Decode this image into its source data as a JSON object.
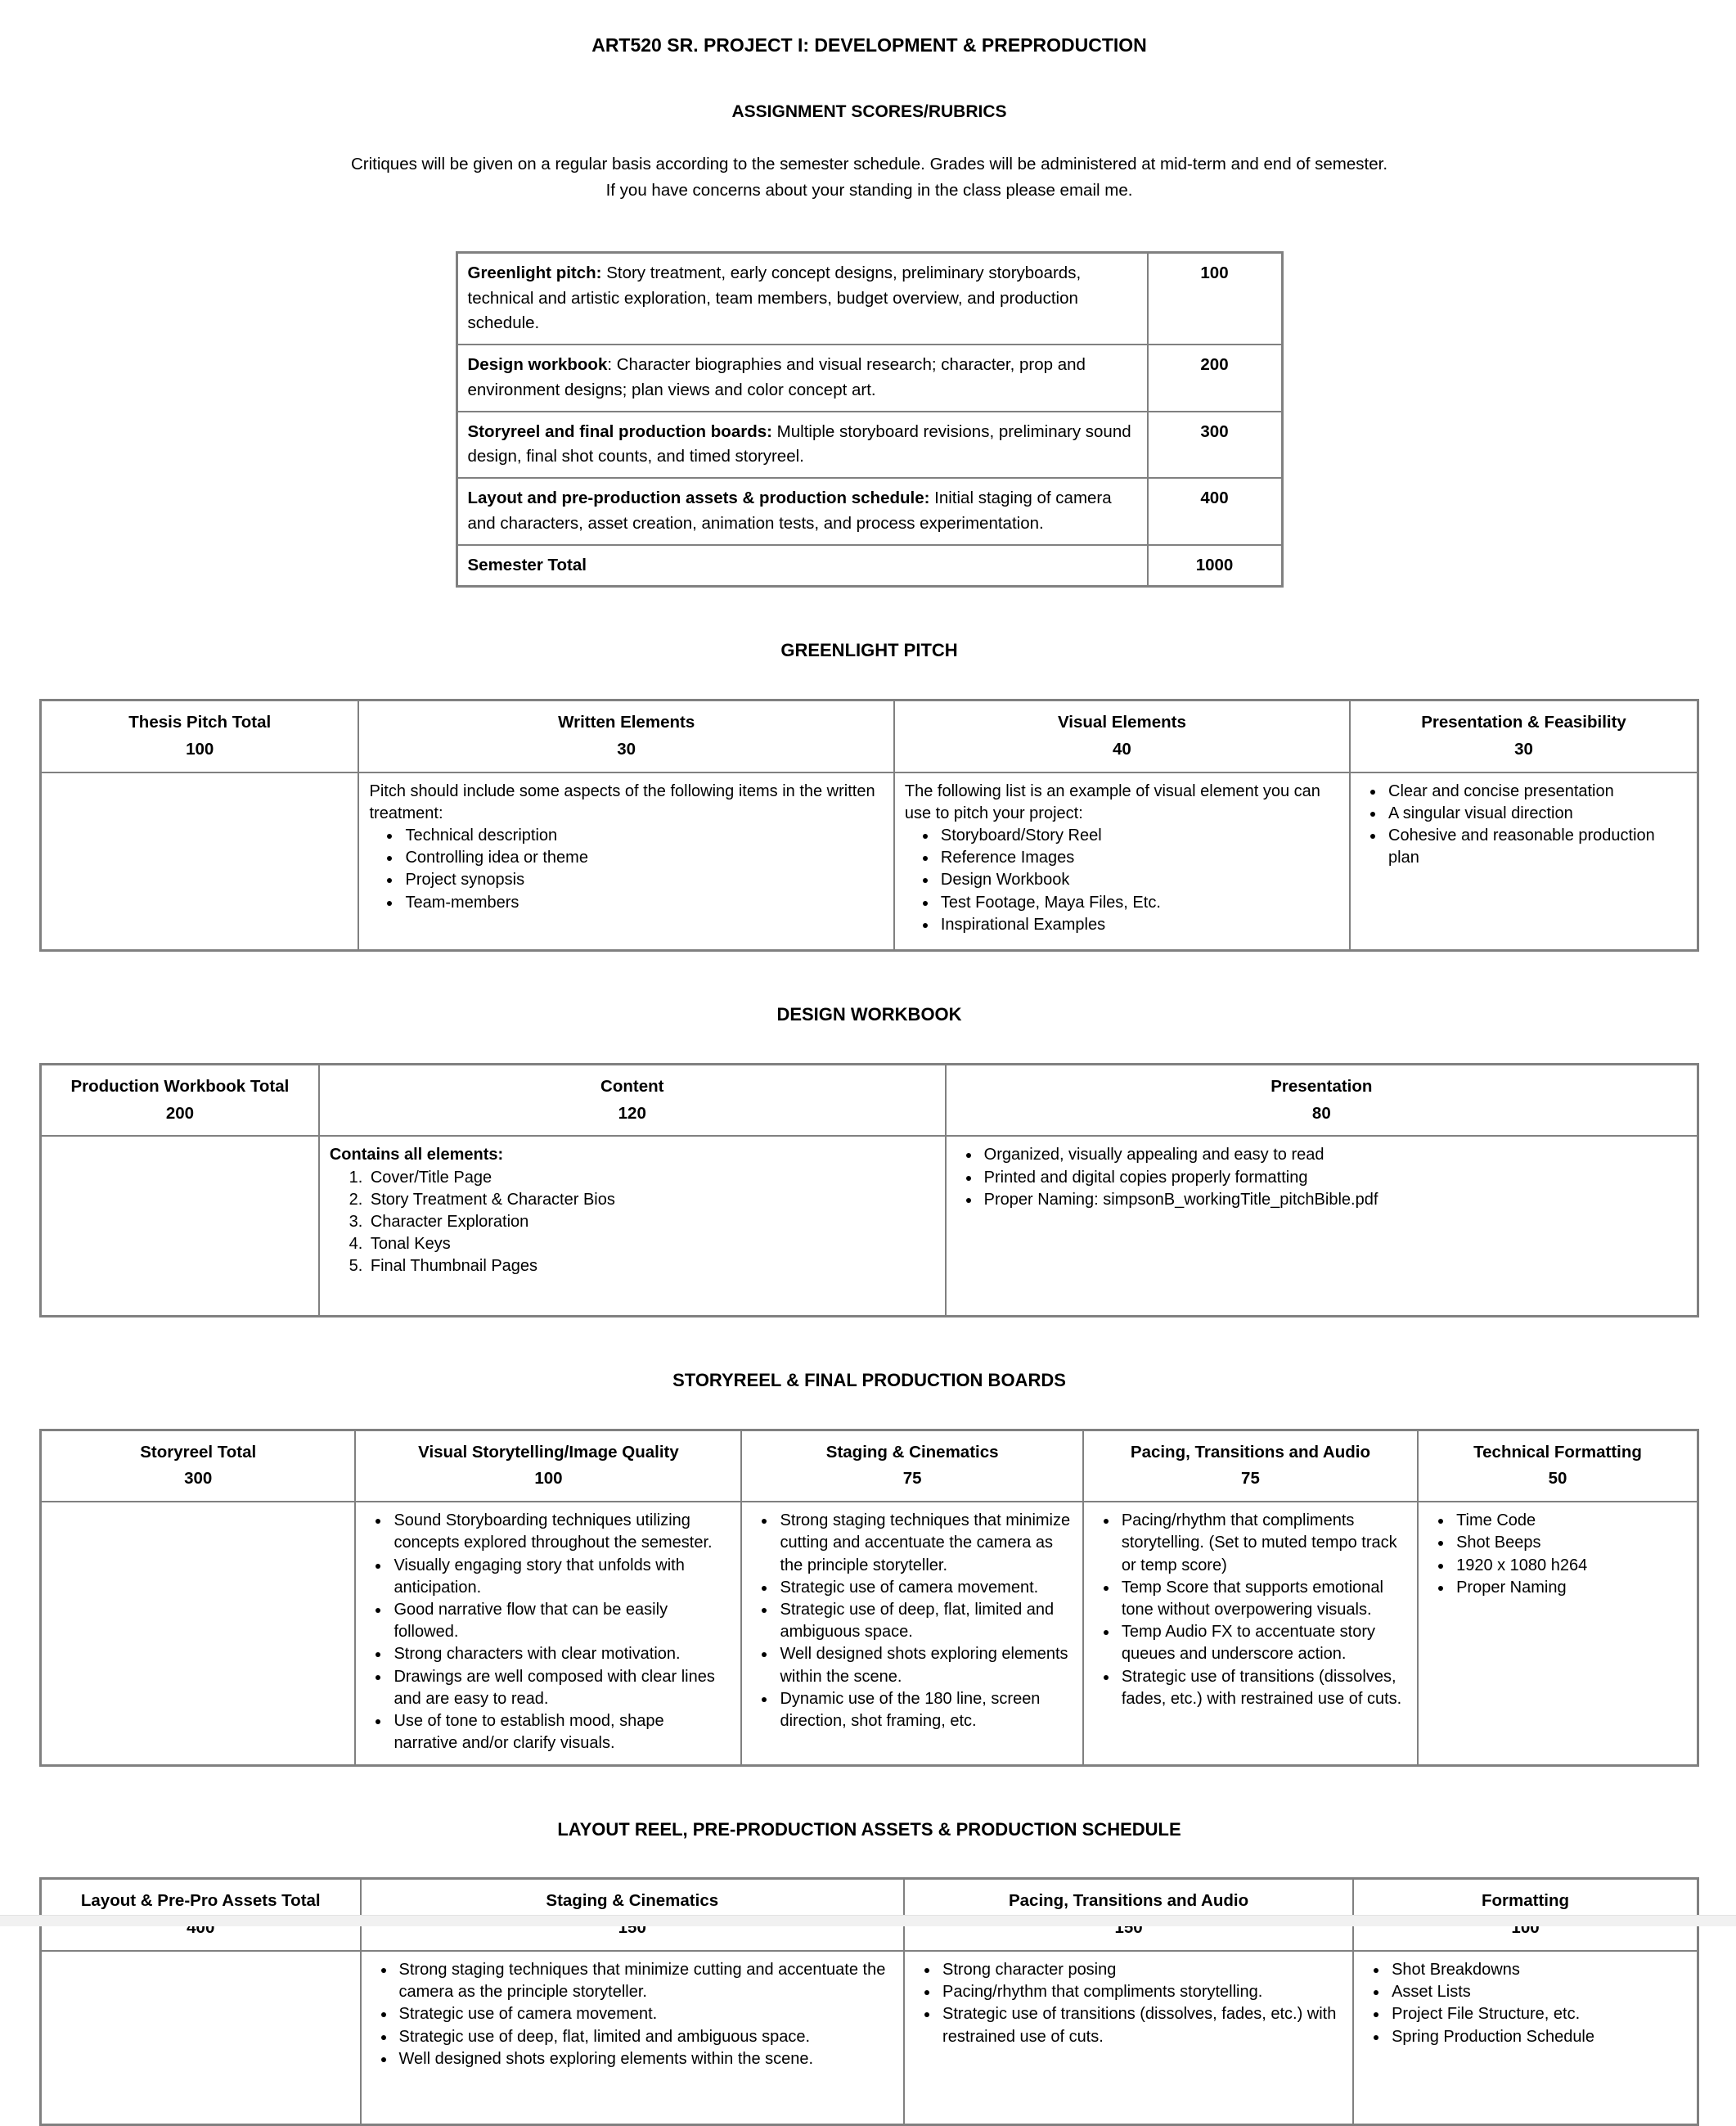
{
  "page": {
    "title": "ART520 SR. PROJECT I: DEVELOPMENT & PREPRODUCTION",
    "subtitle": "ASSIGNMENT SCORES/RUBRICS",
    "intro_line1": "Critiques will be given on a regular basis according to the semester schedule. Grades will be administered at mid-term and end of semester.",
    "intro_line2": "If you have concerns about your standing in the class please email me."
  },
  "overview_table": {
    "rows": [
      {
        "bold": "Greenlight pitch:",
        "rest": " Story treatment, early concept designs, preliminary storyboards, technical and artistic exploration, team members, budget overview, and production schedule.",
        "score": "100"
      },
      {
        "bold": "Design workbook",
        "rest": ": Character biographies and visual research; character, prop and environment designs; plan views and color concept art.",
        "score": "200"
      },
      {
        "bold": "Storyreel and final production boards:",
        "rest": " Multiple storyboard revisions, preliminary sound design, final shot counts, and timed storyreel.",
        "score": "300"
      },
      {
        "bold": "Layout and pre-production assets & production schedule:",
        "rest": " Initial staging of camera and characters, asset creation, animation tests, and process experimentation.",
        "score": "400"
      },
      {
        "bold": "Semester Total",
        "rest": "",
        "score": "1000"
      }
    ]
  },
  "greenlight": {
    "heading": "GREENLIGHT PITCH",
    "columns": [
      {
        "title": "Thesis Pitch Total",
        "points": "100"
      },
      {
        "title": "Written Elements",
        "points": "30",
        "lead": "Pitch should include some aspects of the following items in the written treatment:",
        "bullets": [
          "Technical description",
          "Controlling idea or theme",
          "Project synopsis",
          "Team-members"
        ]
      },
      {
        "title": "Visual Elements",
        "points": "40",
        "lead": "The following list is an example of visual element you can use to pitch your project:",
        "bullets": [
          "Storyboard/Story Reel",
          "Reference Images",
          "Design Workbook",
          "Test Footage, Maya Files, Etc.",
          "Inspirational Examples"
        ]
      },
      {
        "title": "Presentation & Feasibility",
        "points": "30",
        "bullets": [
          "Clear and concise presentation",
          "A singular visual direction",
          "Cohesive and reasonable production plan"
        ]
      }
    ]
  },
  "workbook": {
    "heading": "DESIGN WORKBOOK",
    "columns": [
      {
        "title": "Production Workbook Total",
        "points": "200"
      },
      {
        "title": "Content",
        "points": "120",
        "lead_bold": "Contains all elements:",
        "numbered": [
          "Cover/Title Page",
          "Story Treatment & Character Bios",
          "Character Exploration",
          "Tonal Keys",
          "Final Thumbnail Pages"
        ]
      },
      {
        "title": "Presentation",
        "points": "80",
        "bullets": [
          "Organized, visually appealing and easy to read",
          "Printed and digital copies properly formatting",
          "Proper Naming: simpsonB_workingTitle_pitchBible.pdf"
        ]
      }
    ]
  },
  "storyreel": {
    "heading": "STORYREEL & FINAL PRODUCTION BOARDS",
    "columns": [
      {
        "title": "Storyreel Total",
        "points": "300"
      },
      {
        "title": "Visual Storytelling/Image Quality",
        "points": "100",
        "bullets": [
          "Sound Storyboarding techniques utilizing concepts explored throughout the semester.",
          "Visually engaging story that unfolds with anticipation.",
          "Good narrative flow that can be easily followed.",
          "Strong characters with clear motivation.",
          "Drawings are well composed with clear lines and are easy to read.",
          "Use of tone to establish mood, shape narrative and/or clarify visuals."
        ]
      },
      {
        "title": "Staging & Cinematics",
        "points": "75",
        "bullets": [
          "Strong staging techniques that minimize cutting and accentuate the camera as the principle storyteller.",
          "Strategic use of camera movement.",
          "Strategic use of deep, flat, limited and ambiguous space.",
          "Well designed shots exploring elements within the scene.",
          "Dynamic use of the 180 line, screen direction, shot framing, etc."
        ]
      },
      {
        "title": "Pacing, Transitions and Audio",
        "points": "75",
        "bullets": [
          "Pacing/rhythm that compliments storytelling.  (Set to muted tempo track or temp score)",
          "Temp Score that supports emotional tone without overpowering  visuals.",
          "Temp Audio FX to accentuate story queues and underscore action.",
          "Strategic use of transitions (dissolves, fades, etc.) with restrained use of cuts."
        ]
      },
      {
        "title": "Technical Formatting",
        "points": "50",
        "bullets": [
          "Time Code",
          "Shot Beeps",
          "1920 x 1080 h264",
          "Proper Naming"
        ]
      }
    ]
  },
  "layout_section": {
    "heading": "LAYOUT REEL, PRE-PRODUCTION ASSETS & PRODUCTION SCHEDULE",
    "columns": [
      {
        "title": "Layout & Pre-Pro Assets Total",
        "points": "400"
      },
      {
        "title": "Staging & Cinematics",
        "points": "150",
        "bullets": [
          "Strong staging techniques that minimize cutting and accentuate the camera as the principle storyteller.",
          "Strategic use of camera movement.",
          "Strategic use of deep, flat, limited and ambiguous space.",
          "Well designed shots exploring elements within the scene."
        ]
      },
      {
        "title": "Pacing, Transitions and Audio",
        "points": "150",
        "bullets": [
          "Strong character posing",
          "Pacing/rhythm that compliments storytelling.",
          "Strategic use of transitions (dissolves, fades, etc.) with restrained use of cuts."
        ]
      },
      {
        "title": "Formatting",
        "points": "100",
        "bullets": [
          "Shot Breakdowns",
          "Asset Lists",
          "Project File Structure, etc.",
          "Spring Production Schedule"
        ]
      }
    ]
  }
}
